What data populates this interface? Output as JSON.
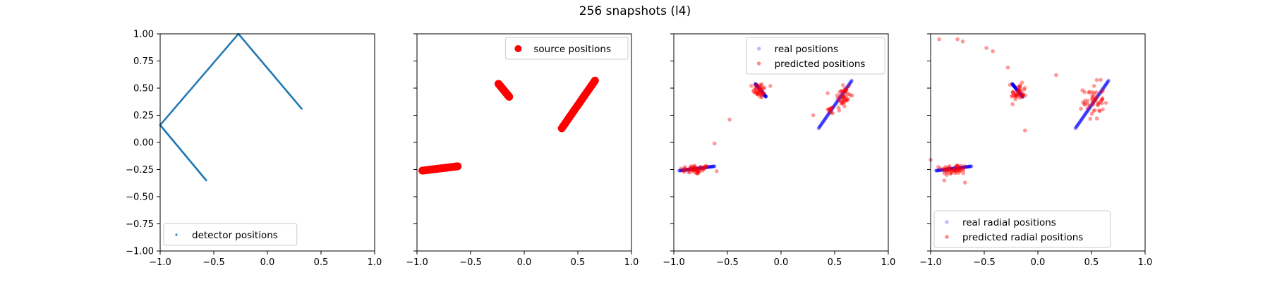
{
  "title": "256 snapshots (l4)",
  "colors": {
    "detector": "#1f77b4",
    "source": "#ff0000",
    "real": "#0000ff",
    "predicted": "#ff0000"
  },
  "chart_data": [
    {
      "type": "scatter",
      "xlim": [
        -1,
        1
      ],
      "ylim": [
        -1,
        1
      ],
      "xticks": [
        "−1.0",
        "−0.5",
        "0.0",
        "0.5",
        "1.0"
      ],
      "yticks": [
        "−1.00",
        "−0.75",
        "−0.50",
        "−0.25",
        "0.00",
        "0.25",
        "0.50",
        "0.75",
        "1.00"
      ],
      "legend": "lower-center",
      "series": [
        {
          "name": "detector positions",
          "polyline": [
            [
              0.32,
              0.31
            ],
            [
              -0.27,
              1.0
            ],
            [
              -1.0,
              0.16
            ],
            [
              -0.57,
              -0.35
            ]
          ]
        }
      ]
    },
    {
      "type": "scatter",
      "xlim": [
        -1,
        1
      ],
      "ylim": [
        -1,
        1
      ],
      "xticks": [
        "−1.0",
        "−0.5",
        "0.0",
        "0.5",
        "1.0"
      ],
      "legend": "upper-right",
      "series": [
        {
          "name": "source positions",
          "segments": [
            [
              [
                -0.95,
                -0.26
              ],
              [
                -0.62,
                -0.22
              ]
            ],
            [
              [
                -0.24,
                0.54
              ],
              [
                -0.14,
                0.42
              ]
            ],
            [
              [
                0.35,
                0.13
              ],
              [
                0.66,
                0.57
              ]
            ]
          ]
        }
      ]
    },
    {
      "type": "scatter",
      "xlim": [
        -1,
        1
      ],
      "ylim": [
        -1,
        1
      ],
      "xticks": [
        "−1.0",
        "−0.5",
        "0.0",
        "0.5",
        "1.0"
      ],
      "legend": "upper-right",
      "series": [
        {
          "name": "real positions",
          "segments": [
            [
              [
                -0.95,
                -0.26
              ],
              [
                -0.62,
                -0.22
              ]
            ],
            [
              [
                -0.24,
                0.54
              ],
              [
                -0.14,
                0.42
              ]
            ],
            [
              [
                0.35,
                0.13
              ],
              [
                0.66,
                0.57
              ]
            ]
          ]
        },
        {
          "name": "predicted positions",
          "clusters": [
            {
              "center": [
                -0.8,
                -0.25
              ],
              "spread": [
                0.12,
                0.035
              ],
              "count": 50
            },
            {
              "center": [
                -0.2,
                0.48
              ],
              "spread": [
                0.05,
                0.06
              ],
              "count": 38
            },
            {
              "center": [
                0.58,
                0.42
              ],
              "spread": [
                0.06,
                0.12
              ],
              "count": 45
            },
            {
              "center": [
                0.46,
                0.3
              ],
              "spread": [
                0.04,
                0.03
              ],
              "count": 10
            }
          ],
          "extra": [
            [
              -0.48,
              0.21
            ],
            [
              -0.62,
              -0.01
            ],
            [
              -0.1,
              0.52
            ],
            [
              0.3,
              0.25
            ]
          ]
        }
      ]
    },
    {
      "type": "scatter",
      "xlim": [
        -1,
        1
      ],
      "ylim": [
        -1,
        1
      ],
      "xticks": [
        "−1.0",
        "−0.5",
        "0.0",
        "0.5",
        "1.0"
      ],
      "legend": "lower-left",
      "series": [
        {
          "name": "real radial positions",
          "segments": [
            [
              [
                -0.95,
                -0.26
              ],
              [
                -0.62,
                -0.22
              ]
            ],
            [
              [
                -0.24,
                0.54
              ],
              [
                -0.14,
                0.42
              ]
            ],
            [
              [
                0.35,
                0.13
              ],
              [
                0.66,
                0.57
              ]
            ]
          ]
        },
        {
          "name": "predicted radial positions",
          "clusters": [
            {
              "center": [
                -0.78,
                -0.25
              ],
              "spread": [
                0.1,
                0.04
              ],
              "count": 50
            },
            {
              "center": [
                -0.18,
                0.45
              ],
              "spread": [
                0.06,
                0.07
              ],
              "count": 38
            },
            {
              "center": [
                0.52,
                0.38
              ],
              "spread": [
                0.08,
                0.14
              ],
              "count": 50
            }
          ],
          "extra": [
            [
              -0.92,
              0.95
            ],
            [
              -0.75,
              0.95
            ],
            [
              -0.7,
              0.93
            ],
            [
              -0.48,
              0.87
            ],
            [
              -0.42,
              0.84
            ],
            [
              -0.28,
              0.69
            ],
            [
              -0.26,
              0.53
            ],
            [
              -0.12,
              0.11
            ],
            [
              0.17,
              0.62
            ],
            [
              -1.0,
              -0.16
            ],
            [
              -0.68,
              -0.37
            ],
            [
              -0.85,
              -0.3
            ]
          ]
        }
      ]
    }
  ]
}
